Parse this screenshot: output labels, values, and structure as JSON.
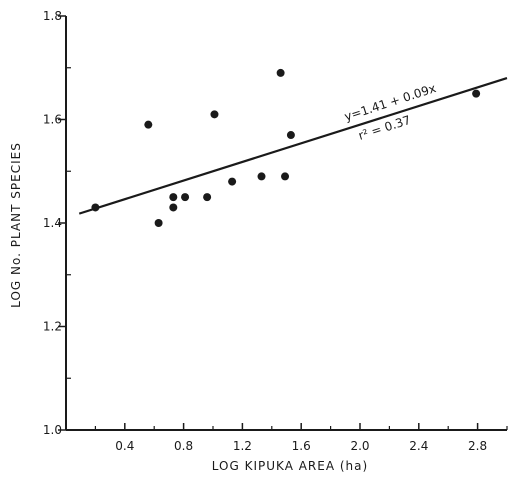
{
  "chart_data": {
    "type": "scatter",
    "xlabel": "LOG KIPUKA AREA (ha)",
    "ylabel": "LOG No. PLANT SPECIES",
    "xlim": [
      0.0,
      3.0
    ],
    "ylim": [
      1.0,
      1.8
    ],
    "x_ticks": [
      0.4,
      0.8,
      1.2,
      1.6,
      2.0,
      2.4,
      2.8
    ],
    "x_tick_labels": [
      "0.4",
      "0.8",
      "1.2",
      "1.6",
      "2.0",
      "2.4",
      "2.8"
    ],
    "y_ticks": [
      1.0,
      1.2,
      1.4,
      1.6,
      1.8
    ],
    "y_tick_labels": [
      "1.0",
      "1.2",
      "1.4",
      "1.6",
      "1.8"
    ],
    "grid": false,
    "points": [
      {
        "x": 0.2,
        "y": 1.43
      },
      {
        "x": 0.56,
        "y": 1.59
      },
      {
        "x": 0.63,
        "y": 1.4
      },
      {
        "x": 0.73,
        "y": 1.45
      },
      {
        "x": 0.73,
        "y": 1.43
      },
      {
        "x": 0.81,
        "y": 1.45
      },
      {
        "x": 0.96,
        "y": 1.45
      },
      {
        "x": 1.01,
        "y": 1.61
      },
      {
        "x": 1.13,
        "y": 1.48
      },
      {
        "x": 1.33,
        "y": 1.49
      },
      {
        "x": 1.46,
        "y": 1.69
      },
      {
        "x": 1.49,
        "y": 1.49
      },
      {
        "x": 1.53,
        "y": 1.57
      },
      {
        "x": 2.79,
        "y": 1.65
      }
    ],
    "regression": {
      "intercept": 1.41,
      "slope": 0.09,
      "x_range": [
        0.09,
        3.0
      ]
    },
    "annotations": {
      "equation": "y=1.41 + 0.09x",
      "r_squared": "r² = 0.37"
    }
  }
}
